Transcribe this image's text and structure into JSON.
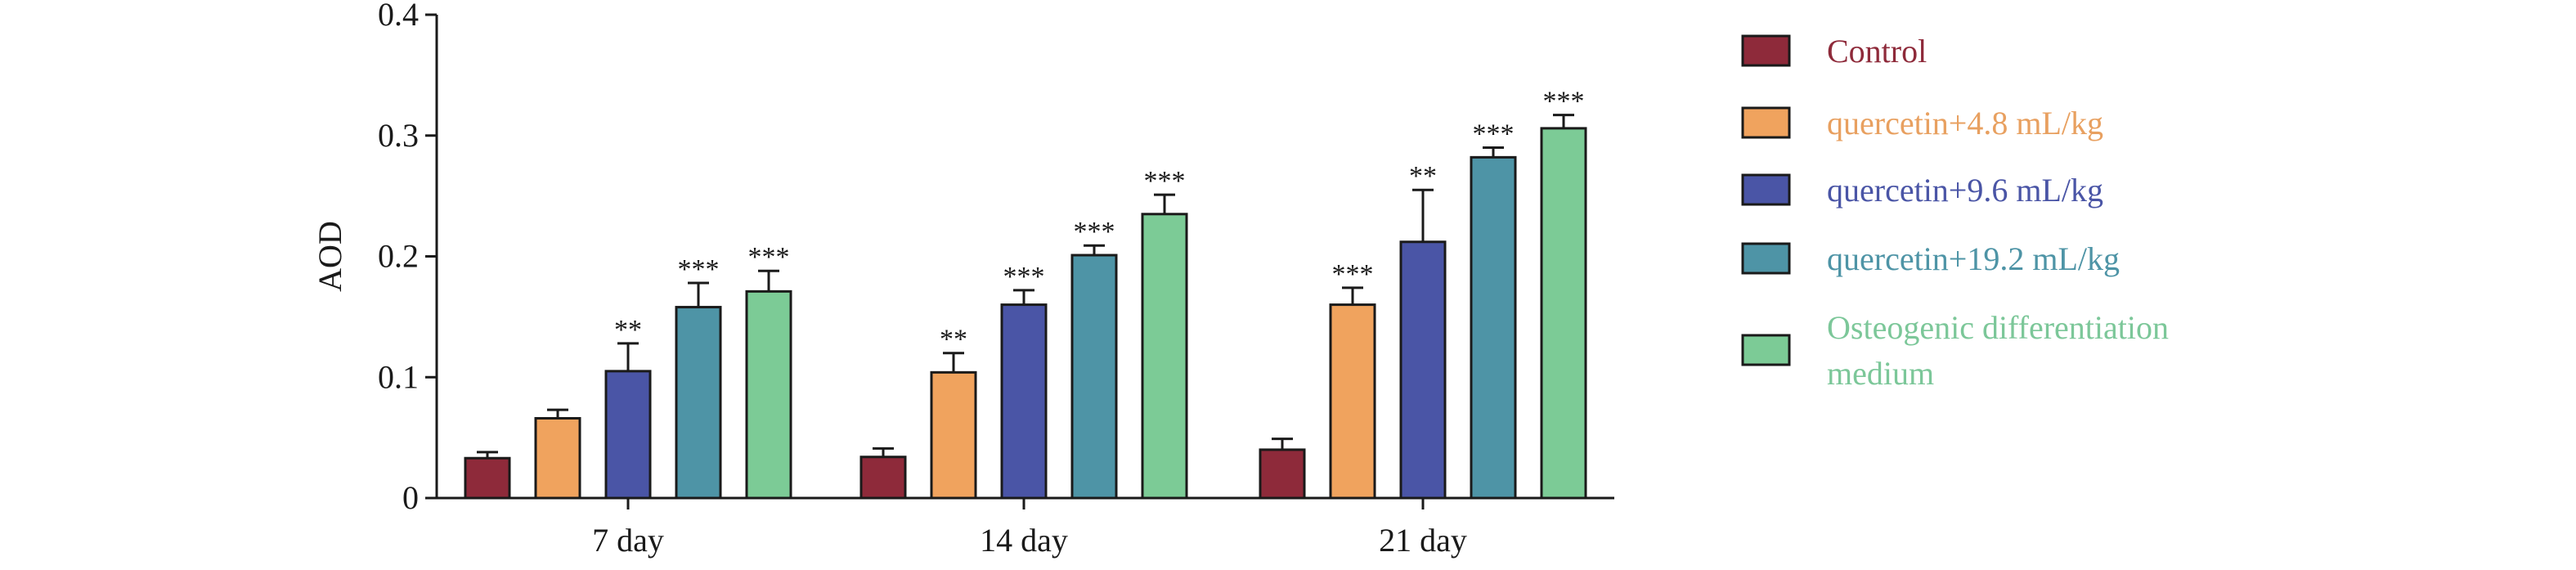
{
  "chart_data": {
    "type": "bar",
    "title": "",
    "xlabel": "",
    "ylabel": "AOD",
    "ylim": [
      0,
      0.4
    ],
    "yticks": [
      0,
      0.1,
      0.2,
      0.3,
      0.4
    ],
    "ytick_labels": [
      "0",
      "0.1",
      "0.2",
      "0.3",
      "0.4"
    ],
    "categories": [
      "7 day",
      "14 day",
      "21 day"
    ],
    "legend_position": "right",
    "grid": false,
    "series": [
      {
        "name": "Control",
        "color": "#8e2a3a",
        "label_color": "#8e2a3a",
        "values": [
          0.033,
          0.034,
          0.04
        ],
        "errors": [
          0.005,
          0.007,
          0.009
        ],
        "significance": [
          "",
          "",
          ""
        ]
      },
      {
        "name": "quercetin+4.8 mL/kg",
        "color": "#f0a35e",
        "label_color": "#e8a060",
        "values": [
          0.066,
          0.104,
          0.16
        ],
        "errors": [
          0.007,
          0.016,
          0.014
        ],
        "significance": [
          "",
          "**",
          "***"
        ]
      },
      {
        "name": "quercetin+9.6 mL/kg",
        "color": "#4a55a6",
        "label_color": "#4a55a6",
        "values": [
          0.105,
          0.16,
          0.212
        ],
        "errors": [
          0.023,
          0.012,
          0.043
        ],
        "significance": [
          "**",
          "***",
          "**"
        ]
      },
      {
        "name": "quercetin+19.2 mL/kg",
        "color": "#4e94a6",
        "label_color": "#4e94a6",
        "values": [
          0.158,
          0.201,
          0.282
        ],
        "errors": [
          0.02,
          0.008,
          0.008
        ],
        "significance": [
          "***",
          "***",
          "***"
        ]
      },
      {
        "name": "Osteogenic differentiation medium",
        "name_lines": [
          "Osteogenic differentiation",
          "medium"
        ],
        "color": "#7ccb96",
        "label_color": "#7cc799",
        "values": [
          0.171,
          0.235,
          0.306
        ],
        "errors": [
          0.017,
          0.016,
          0.011
        ],
        "significance": [
          "***",
          "***",
          "***"
        ]
      }
    ]
  }
}
